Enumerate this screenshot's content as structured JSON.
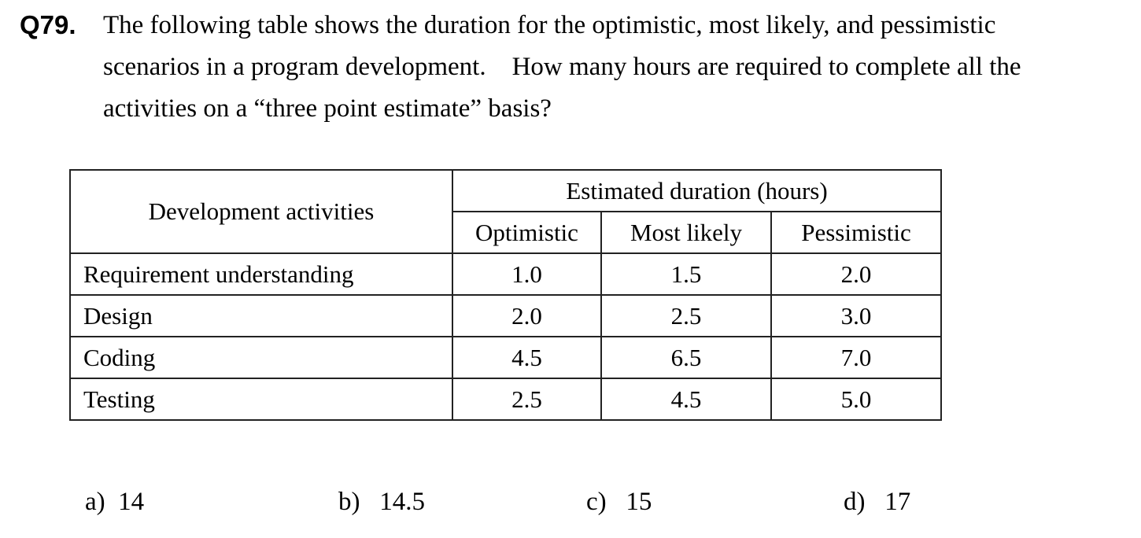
{
  "question": {
    "number": "Q79.",
    "lines": [
      "The following table shows the duration for the optimistic, most likely, and pessimistic",
      "scenarios in a program development.    How many hours are required to complete all the",
      "activities on a “three point estimate” basis?"
    ]
  },
  "table": {
    "activity_header": "Development activities",
    "group_header": "Estimated duration (hours)",
    "columns": [
      "Optimistic",
      "Most likely",
      "Pessimistic"
    ],
    "rows": [
      {
        "activity": "Requirement understanding",
        "values": [
          "1.0",
          "1.5",
          "2.0"
        ]
      },
      {
        "activity": "Design",
        "values": [
          "2.0",
          "2.5",
          "3.0"
        ]
      },
      {
        "activity": "Coding",
        "values": [
          "4.5",
          "6.5",
          "7.0"
        ]
      },
      {
        "activity": "Testing",
        "values": [
          "2.5",
          "4.5",
          "5.0"
        ]
      }
    ]
  },
  "options": [
    {
      "label": "a)",
      "value": "14"
    },
    {
      "label": "b)",
      "value": "14.5"
    },
    {
      "label": "c)",
      "value": "15"
    },
    {
      "label": "d)",
      "value": "17"
    }
  ]
}
